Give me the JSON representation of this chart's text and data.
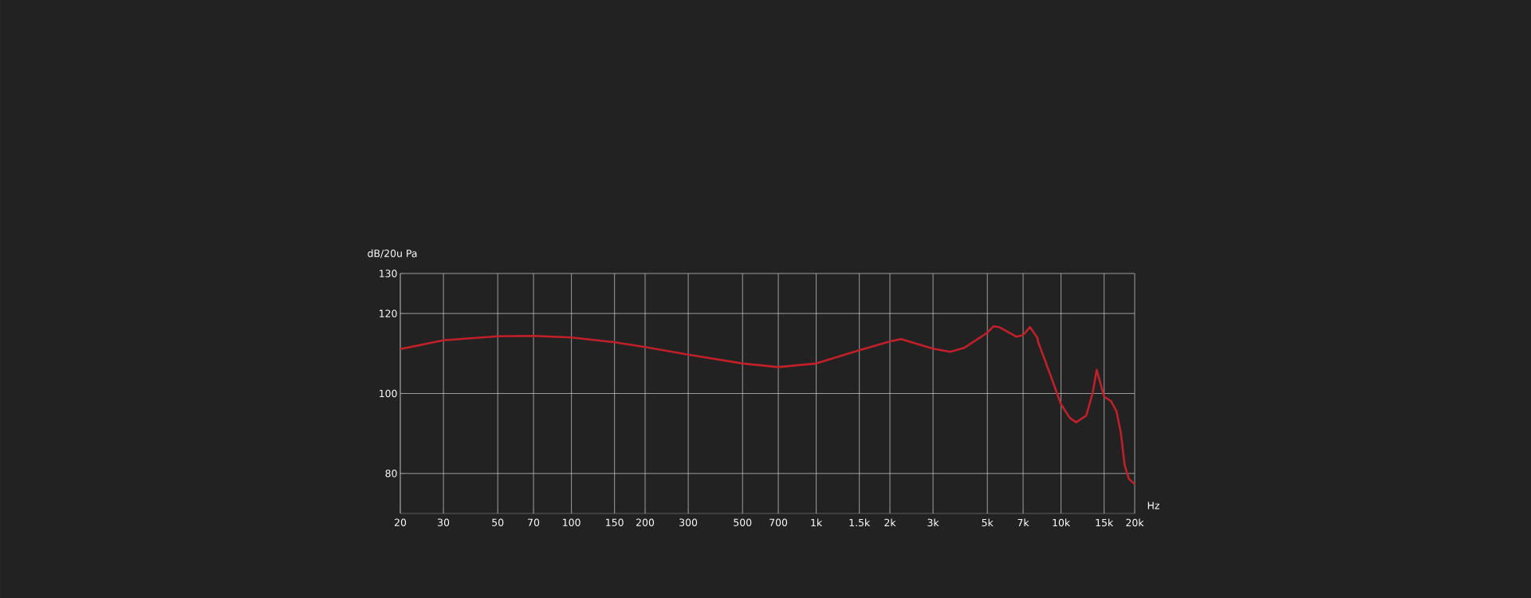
{
  "chart_data": {
    "type": "line",
    "xlabel": "Hz",
    "ylabel": "dB/20u Pa",
    "log": "x",
    "grid": true,
    "color": "#c0202a",
    "x": [
      20,
      30,
      50,
      70,
      100,
      150,
      200,
      300,
      500,
      700,
      1000,
      1500,
      2000,
      2220,
      3000,
      3530,
      4020,
      5000,
      5300,
      5580,
      6570,
      7000,
      7470,
      8010,
      8050,
      8840,
      10000,
      10860,
      11530,
      12680,
      13460,
      13990,
      15000,
      16000,
      16840,
      17530,
      18200,
      18920,
      20000
    ],
    "values": [
      111.1,
      113.3,
      114.3,
      114.4,
      114.0,
      112.8,
      111.6,
      109.7,
      107.5,
      106.6,
      107.5,
      110.8,
      113.0,
      113.6,
      111.2,
      110.4,
      111.4,
      115.2,
      116.8,
      116.6,
      114.2,
      114.6,
      116.6,
      113.9,
      113.0,
      106.3,
      97.3,
      93.9,
      92.8,
      94.5,
      100.1,
      105.9,
      99.2,
      98.1,
      95.6,
      90.4,
      82.1,
      78.7,
      77.3
    ],
    "xlim": [
      20,
      20000
    ],
    "ylim": [
      70,
      130
    ],
    "xticks": [
      20,
      30,
      50,
      70,
      100,
      150,
      200,
      300,
      500,
      700,
      {
        "value": 1000,
        "label": "1k"
      },
      {
        "value": 1500,
        "label": "1.5k"
      },
      {
        "value": 2000,
        "label": "2k"
      },
      {
        "value": 3000,
        "label": "3k"
      },
      {
        "value": 5000,
        "label": "5k"
      },
      {
        "value": 7000,
        "label": "7k"
      },
      {
        "value": 10000,
        "label": "10k"
      },
      {
        "value": 15000,
        "label": "15k"
      },
      {
        "value": 20000,
        "label": "20k"
      }
    ],
    "yticks": [
      80,
      100,
      120,
      130
    ]
  }
}
